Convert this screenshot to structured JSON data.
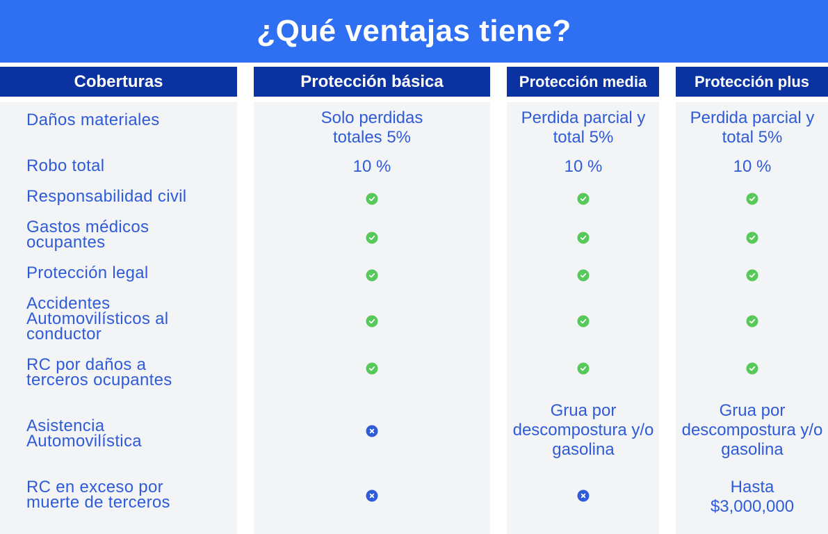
{
  "title": "¿Qué ventajas tiene?",
  "colors": {
    "accent": "#2f6ff2",
    "header_bg": "#0a32a0",
    "text": "#2f5bd8",
    "check": "#56c95a",
    "cross": "#2f5bd8"
  },
  "headers": [
    "Coberturas",
    "Protección básica",
    "Protección media",
    "Protección plus"
  ],
  "rows": [
    {
      "label": "Daños materiales",
      "basica": "Solo perdidas totales 5%",
      "media": "Perdida parcial y total 5%",
      "plus": "Perdida parcial y total 5%"
    },
    {
      "label": "Robo total",
      "basica": "10 %",
      "media": "10 %",
      "plus": "10 %"
    },
    {
      "label": "Responsabilidad civil",
      "basica": "check-icon",
      "media": "check-icon",
      "plus": "check-icon"
    },
    {
      "label": "Gastos médicos ocupantes",
      "basica": "check-icon",
      "media": "check-icon",
      "plus": "check-icon"
    },
    {
      "label": "Protección legal",
      "basica": "check-icon",
      "media": "check-icon",
      "plus": "check-icon"
    },
    {
      "label": "Accidentes Automovilísticos al conductor",
      "basica": "check-icon",
      "media": "check-icon",
      "plus": "check-icon"
    },
    {
      "label": "RC por daños a terceros ocupantes",
      "basica": "check-icon",
      "media": "check-icon",
      "plus": "check-icon"
    },
    {
      "label": "Asistencia Automovilística",
      "basica": "cross-icon",
      "media": "Grua por descompostura y/o gasolina",
      "plus": "Grua por descompostura y/o gasolina"
    },
    {
      "label": "RC en exceso por muerte de terceros",
      "basica": "cross-icon",
      "media": "cross-icon",
      "plus": "Hasta $3,000,000"
    }
  ]
}
